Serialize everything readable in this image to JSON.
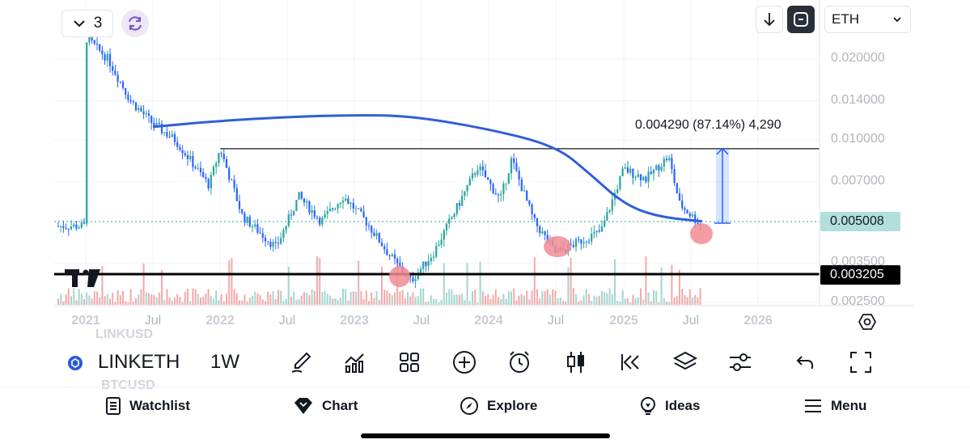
{
  "top_bar": {
    "layout_count": "3",
    "currency_select": "ETH"
  },
  "symbol_bar": {
    "symbol": "LINKETH",
    "interval": "1W",
    "prev_symbol": "LINKUSD",
    "next_symbol": "BTCUSD"
  },
  "chart_data": {
    "type": "candlestick",
    "title": "LINKETH",
    "interval": "1W",
    "x_ticks": [
      "2021",
      "Jul",
      "2022",
      "Jul",
      "2023",
      "Jul",
      "2024",
      "Jul",
      "2025",
      "Jul",
      "2026"
    ],
    "year_ticks": [
      "2021",
      "2022",
      "2023",
      "2024",
      "2025",
      "2026"
    ],
    "y_ticks": [
      "0.020000",
      "0.014000",
      "0.010000",
      "0.007000",
      "0.003500",
      "0.002500"
    ],
    "y_scale": "log",
    "price_series": [
      {
        "date": "2021-01",
        "value": 0.024
      },
      {
        "date": "2021-03",
        "value": 0.02
      },
      {
        "date": "2021-05",
        "value": 0.014
      },
      {
        "date": "2021-07",
        "value": 0.0115
      },
      {
        "date": "2021-09",
        "value": 0.01
      },
      {
        "date": "2021-12",
        "value": 0.0068
      },
      {
        "date": "2022-01",
        "value": 0.0093
      },
      {
        "date": "2022-03",
        "value": 0.0052
      },
      {
        "date": "2022-06",
        "value": 0.004
      },
      {
        "date": "2022-08",
        "value": 0.0062
      },
      {
        "date": "2022-10",
        "value": 0.005
      },
      {
        "date": "2022-12",
        "value": 0.0062
      },
      {
        "date": "2023-02",
        "value": 0.005
      },
      {
        "date": "2023-04",
        "value": 0.0038
      },
      {
        "date": "2023-06",
        "value": 0.003
      },
      {
        "date": "2023-08",
        "value": 0.0038
      },
      {
        "date": "2023-10",
        "value": 0.0055
      },
      {
        "date": "2023-12",
        "value": 0.008
      },
      {
        "date": "2024-02",
        "value": 0.006
      },
      {
        "date": "2024-03",
        "value": 0.0085
      },
      {
        "date": "2024-05",
        "value": 0.005
      },
      {
        "date": "2024-07",
        "value": 0.0038
      },
      {
        "date": "2024-09",
        "value": 0.0042
      },
      {
        "date": "2024-11",
        "value": 0.0046
      },
      {
        "date": "2025-01",
        "value": 0.0078
      },
      {
        "date": "2025-03",
        "value": 0.0072
      },
      {
        "date": "2025-05",
        "value": 0.0087
      },
      {
        "date": "2025-06",
        "value": 0.0058
      },
      {
        "date": "2025-08",
        "value": 0.0048
      }
    ],
    "moving_average": [
      {
        "date": "2021-07",
        "value": 0.0112
      },
      {
        "date": "2022-01",
        "value": 0.0118
      },
      {
        "date": "2022-07",
        "value": 0.0122
      },
      {
        "date": "2023-01",
        "value": 0.0124
      },
      {
        "date": "2023-06",
        "value": 0.0123
      },
      {
        "date": "2024-01",
        "value": 0.011
      },
      {
        "date": "2024-07",
        "value": 0.0095
      },
      {
        "date": "2024-10",
        "value": 0.0075
      },
      {
        "date": "2025-01",
        "value": 0.0058
      },
      {
        "date": "2025-04",
        "value": 0.0052
      },
      {
        "date": "2025-08",
        "value": 0.005
      }
    ],
    "horizontal_lines": [
      {
        "name": "resistance",
        "value": 0.0093
      },
      {
        "name": "support",
        "value": 0.003205
      }
    ],
    "price_labels": {
      "current": "0.005008",
      "support": "0.003205"
    },
    "measure_label": "0.004290 (87.14%) 4,290",
    "colors": {
      "up": "#26a69a",
      "down": "#2962ff",
      "ma": "#2f5fd7",
      "current_bg": "#b2dfdb",
      "highlight": "#f28b94"
    }
  },
  "toolbar": {
    "icons": [
      "brush-icon",
      "indicators-icon",
      "layouts-icon",
      "add-icon",
      "alert-icon",
      "candles-icon",
      "replay-icon",
      "layers-icon",
      "settings-icon",
      "undo-icon",
      "fullscreen-icon"
    ]
  },
  "nav": {
    "watchlist": "Watchlist",
    "chart": "Chart",
    "explore": "Explore",
    "ideas": "Ideas",
    "menu": "Menu"
  }
}
